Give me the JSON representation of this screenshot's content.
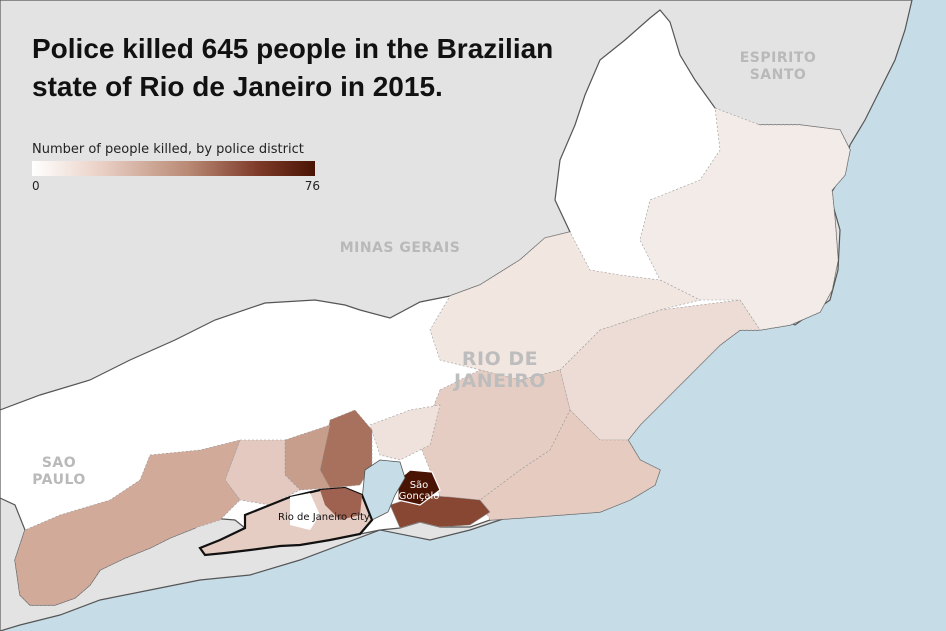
{
  "title": "Police killed 645 people in the Brazilian state of Rio de Janeiro in 2015.",
  "legend": {
    "label": "Number of people killed, by police district",
    "min": "0",
    "max": "76",
    "color_min": "#ffffff",
    "color_max": "#4a1405"
  },
  "region_labels": {
    "espirito_santo": "ESPIRITO SANTO",
    "minas_gerais": "MINAS GERAIS",
    "sao_paulo": "SAO PAULO",
    "rio_de_janeiro": "RIO DE JANEIRO"
  },
  "place_labels": {
    "rio_city": "Rio de Janeiro City",
    "sao_goncalo": "São Gonçalo"
  },
  "colors": {
    "water": "#c6dde8",
    "neighbor_land": "#e3e3e3",
    "state_label": "#b9b9b9"
  }
}
